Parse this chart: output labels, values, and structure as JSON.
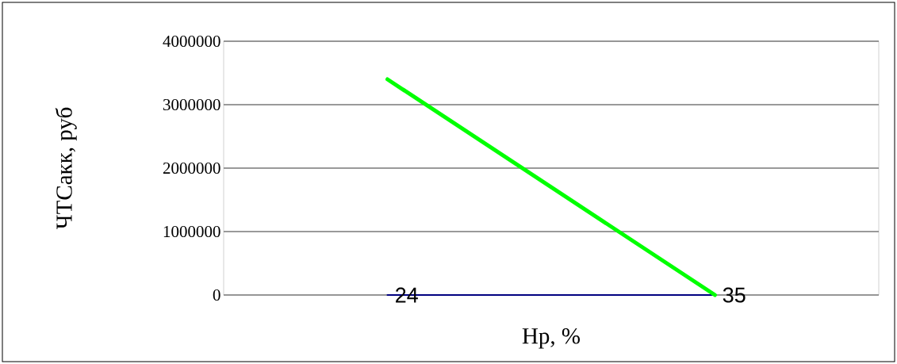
{
  "chart_data": {
    "type": "line",
    "xlabel": "Нр, %",
    "ylabel": "ЧТСакк, руб",
    "categories": [
      null,
      null
    ],
    "series": [
      {
        "color": "#000080",
        "values": [
          24,
          35
        ],
        "value_labels": [
          "24",
          "35"
        ]
      },
      {
        "color": "#00ff00",
        "values": [
          3400000,
          0
        ]
      }
    ],
    "ylim": [
      0,
      4000000
    ],
    "yticks": [
      0,
      1000000,
      2000000,
      3000000,
      4000000
    ],
    "grid": "y",
    "tick_labels": "y",
    "marker": "none"
  }
}
